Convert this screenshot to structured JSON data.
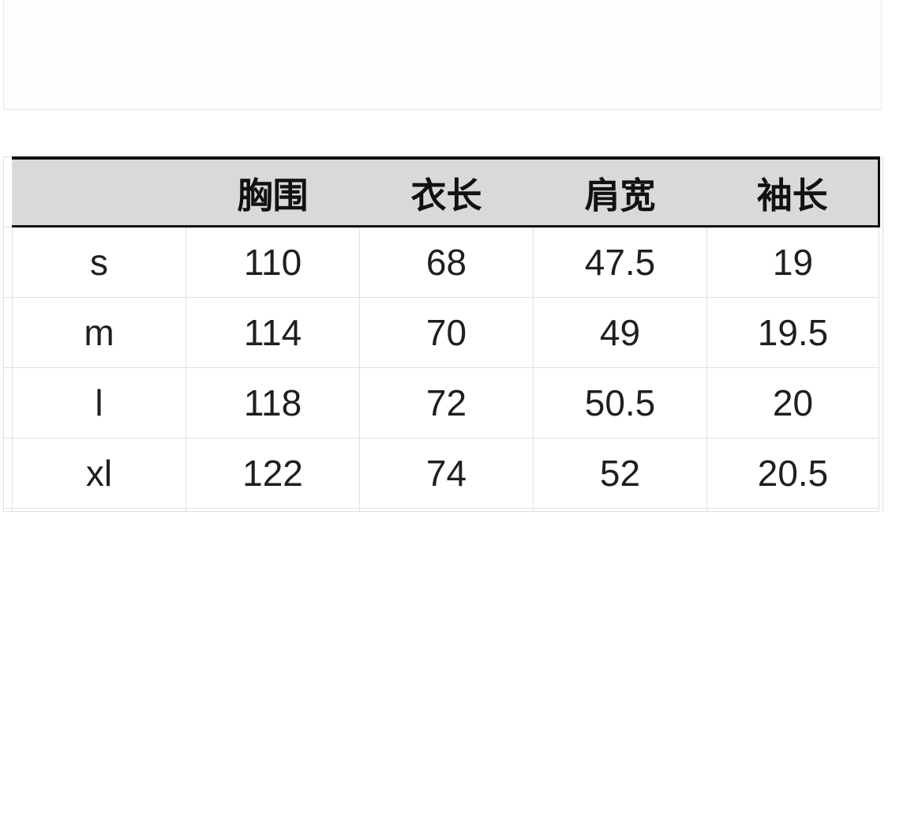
{
  "table": {
    "columns": [
      "",
      "胸围",
      "衣长",
      "肩宽",
      "袖长"
    ],
    "rows": [
      {
        "size": "s",
        "values": [
          "110",
          "68",
          "47.5",
          "19"
        ]
      },
      {
        "size": "m",
        "values": [
          "114",
          "70",
          "49",
          "19.5"
        ]
      },
      {
        "size": "l",
        "values": [
          "118",
          "72",
          "50.5",
          "20"
        ]
      },
      {
        "size": "xl",
        "values": [
          "122",
          "74",
          "52",
          "20.5"
        ]
      }
    ]
  },
  "colors": {
    "page_bg": "#ffffff",
    "panel_bg": "#fdfdfd",
    "panel_border": "#e8e8e8",
    "header_bg": "#d9d9d9",
    "table_border": "#111111",
    "gridline": "#e0e0e0",
    "header_text": "#111111",
    "cell_text": "#1f1f1f"
  }
}
